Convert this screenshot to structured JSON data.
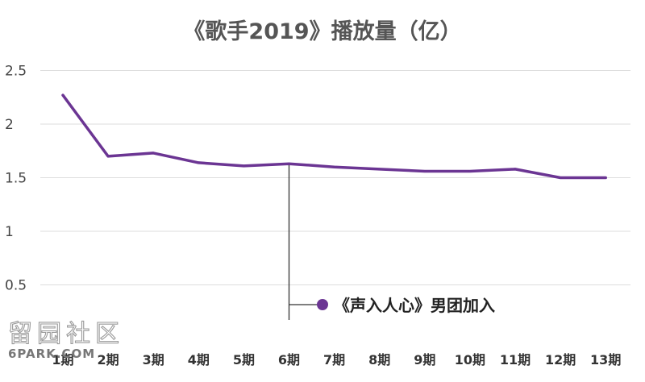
{
  "chart_data": {
    "type": "line",
    "title": "《歌手2019》播放量（亿）",
    "categories": [
      "1期",
      "2期",
      "3期",
      "4期",
      "5期",
      "6期",
      "7期",
      "8期",
      "9期",
      "10期",
      "11期",
      "12期",
      "13期"
    ],
    "values": [
      2.27,
      1.7,
      1.73,
      1.64,
      1.61,
      1.63,
      1.6,
      1.58,
      1.56,
      1.56,
      1.58,
      1.5,
      1.5
    ],
    "ylim": [
      0,
      2.5
    ],
    "yticks": [
      "0.5",
      "1",
      "1.5",
      "2",
      "2.5"
    ],
    "grid": true,
    "line_color": "#6b3593",
    "annotation": {
      "category": "6期",
      "text": "《声入人心》男团加入"
    }
  },
  "watermark": {
    "text": "留园社区",
    "site": "6PARK.COM"
  }
}
